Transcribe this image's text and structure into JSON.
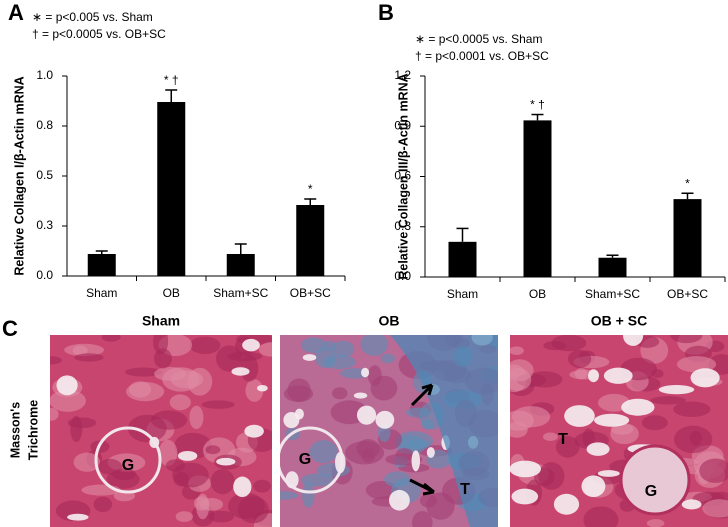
{
  "chart_data": [
    {
      "type": "bar",
      "panel": "A",
      "ylabel": "Relative Collagen I/β-Actin mRNA",
      "notes": [
        "∗ = p<0.005 vs. Sham",
        "† = p<0.0005 vs. OB+SC"
      ],
      "categories": [
        "Sham",
        "OB",
        "Sham+SC",
        "OB+SC"
      ],
      "values": [
        0.11,
        0.87,
        0.11,
        0.355
      ],
      "errors": [
        0.015,
        0.06,
        0.05,
        0.03
      ],
      "bar_labels": [
        null,
        "* †",
        null,
        "*"
      ],
      "color": "#000000",
      "ylim": [
        0,
        1
      ],
      "yticks": [
        {
          "value": 0,
          "label": "0.0"
        },
        {
          "value": 0.25,
          "label": "0.3"
        },
        0.5,
        {
          "value": 0.75,
          "label": "0.8"
        },
        {
          "value": 1,
          "label": "1.0"
        }
      ]
    },
    {
      "type": "bar",
      "panel": "B",
      "ylabel": "Relative Collagen III/β-Actin mRNA",
      "notes": [
        "∗ = p<0.0005 vs. Sham",
        "† = p<0.0001 vs. OB+SC"
      ],
      "categories": [
        "Sham",
        "OB",
        "Sham+SC",
        "OB+SC"
      ],
      "values": [
        0.21,
        0.935,
        0.115,
        0.465
      ],
      "errors": [
        0.08,
        0.035,
        0.015,
        0.035
      ],
      "bar_labels": [
        null,
        "* †",
        null,
        "*"
      ],
      "color": "#000000",
      "ylim": [
        0,
        1.2
      ],
      "yticks": [
        {
          "value": 0,
          "label": "0.0"
        },
        0.3,
        0.6,
        0.9,
        1.2
      ]
    }
  ],
  "panel_c": {
    "panel": "C",
    "row_label": [
      "Masson's",
      "Trichrome"
    ],
    "images": [
      {
        "title": "Sham",
        "labels": [
          "G"
        ]
      },
      {
        "title": "OB",
        "labels": [
          "G",
          "T"
        ]
      },
      {
        "title": "OB + SC",
        "labels": [
          "T",
          "G"
        ]
      }
    ]
  }
}
